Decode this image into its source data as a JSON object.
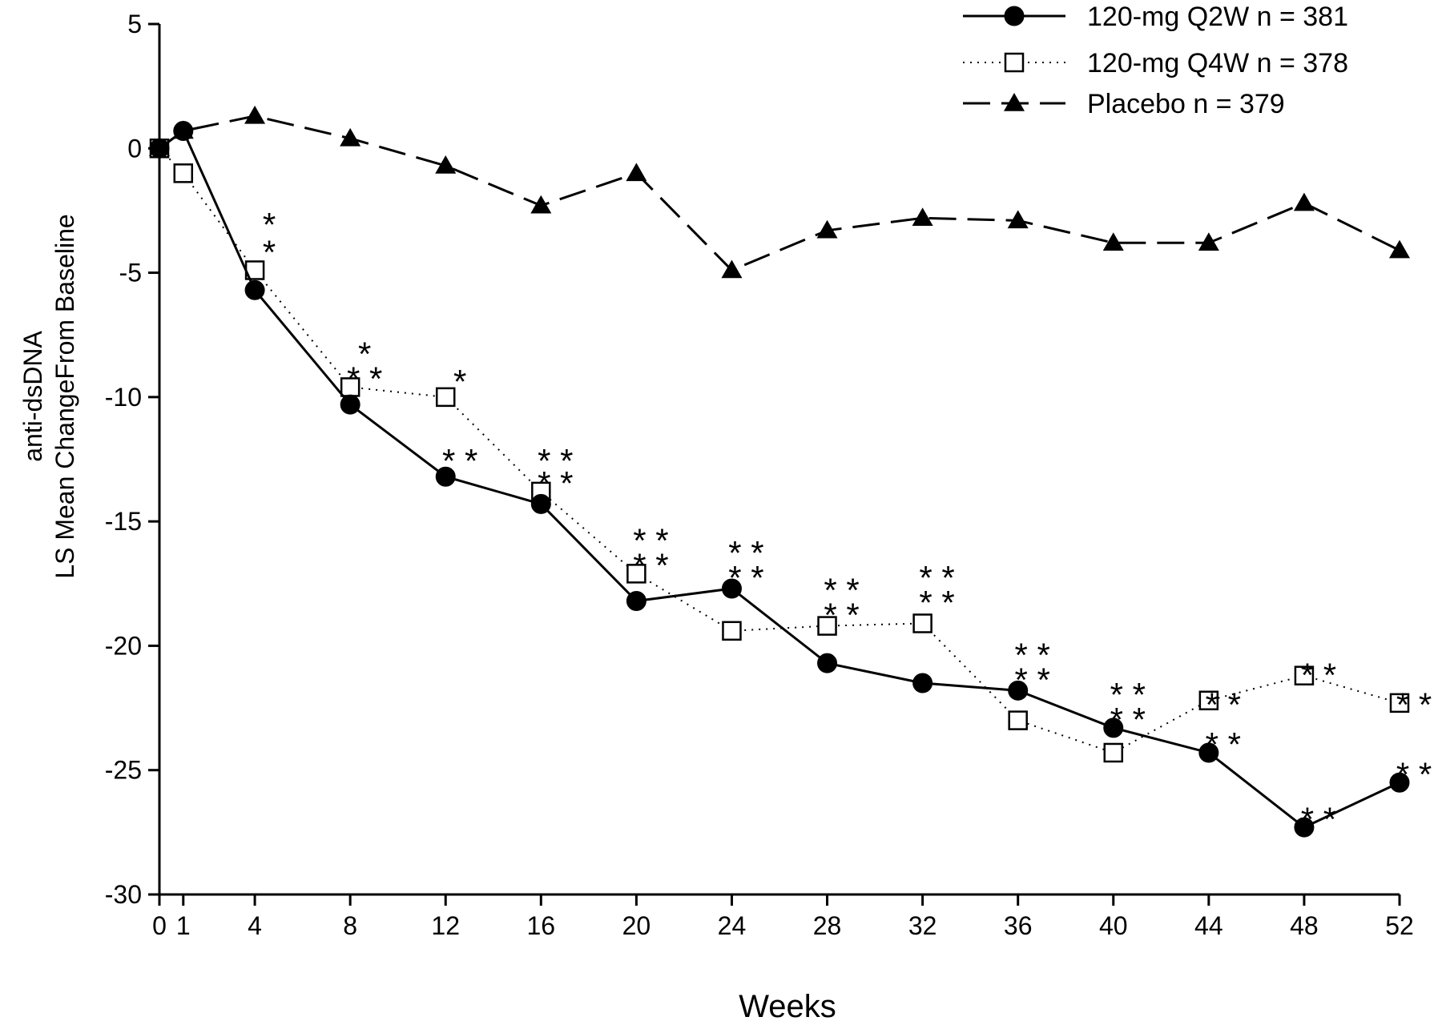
{
  "chart_data": {
    "type": "line",
    "xlabel": "Weeks",
    "ylabel_lines": [
      "anti-dsDNA",
      "LS Mean ChangeFrom Baseline"
    ],
    "xlim": [
      0,
      52
    ],
    "ylim": [
      -30,
      5
    ],
    "xticks": [
      0,
      1,
      4,
      8,
      12,
      16,
      20,
      24,
      28,
      32,
      36,
      40,
      44,
      48,
      52
    ],
    "yticks": [
      5,
      0,
      -5,
      -10,
      -15,
      -20,
      -25,
      -30
    ],
    "grid": false,
    "legend_position": "top-right",
    "series": [
      {
        "name": "120-mg Q2W n = 381",
        "marker": "filled-circle",
        "line_style": "solid",
        "x": [
          0,
          1,
          4,
          8,
          12,
          16,
          20,
          24,
          28,
          32,
          36,
          40,
          44,
          48,
          52
        ],
        "y": [
          0,
          0.7,
          -5.7,
          -10.3,
          -13.2,
          -14.3,
          -18.2,
          -17.7,
          -20.7,
          -21.5,
          -21.8,
          -23.3,
          -24.3,
          -27.3,
          -25.5
        ]
      },
      {
        "name": "120-mg Q4W n = 378",
        "marker": "open-square",
        "line_style": "dotted",
        "x": [
          0,
          1,
          4,
          8,
          12,
          16,
          20,
          24,
          28,
          32,
          36,
          40,
          44,
          48,
          52
        ],
        "y": [
          0,
          -1.0,
          -4.9,
          -9.6,
          -10.0,
          -13.8,
          -17.1,
          -19.4,
          -19.2,
          -19.1,
          -23.0,
          -24.3,
          -22.2,
          -21.2,
          -22.3
        ]
      },
      {
        "name": "Placebo n = 379",
        "marker": "filled-triangle",
        "line_style": "dashed",
        "x": [
          0,
          1,
          4,
          8,
          12,
          16,
          20,
          24,
          28,
          32,
          36,
          40,
          44,
          48,
          52
        ],
        "y": [
          0,
          0.7,
          1.3,
          0.4,
          -0.7,
          -2.3,
          -1.0,
          -4.9,
          -3.3,
          -2.8,
          -2.9,
          -3.8,
          -3.8,
          -2.2,
          -4.1
        ]
      }
    ],
    "annotations": [
      {
        "text": "*",
        "x": 4,
        "y": -2.7
      },
      {
        "text": "*",
        "x": 4,
        "y": -3.8
      },
      {
        "text": "*",
        "x": 8,
        "y": -7.9
      },
      {
        "text": "* *",
        "x": 8,
        "y": -8.9
      },
      {
        "text": "*",
        "x": 12,
        "y": -9.0
      },
      {
        "text": "* *",
        "x": 12,
        "y": -12.2
      },
      {
        "text": "* *",
        "x": 16,
        "y": -12.2
      },
      {
        "text": "* *",
        "x": 16,
        "y": -13.1
      },
      {
        "text": "* *",
        "x": 20,
        "y": -15.4
      },
      {
        "text": "* *",
        "x": 20,
        "y": -16.4
      },
      {
        "text": "* *",
        "x": 24,
        "y": -15.9
      },
      {
        "text": "* *",
        "x": 24,
        "y": -16.9
      },
      {
        "text": "* *",
        "x": 28,
        "y": -17.4
      },
      {
        "text": "* *",
        "x": 28,
        "y": -18.4
      },
      {
        "text": "* *",
        "x": 32,
        "y": -16.9
      },
      {
        "text": "* *",
        "x": 32,
        "y": -17.9
      },
      {
        "text": "* *",
        "x": 36,
        "y": -20.0
      },
      {
        "text": "* *",
        "x": 36,
        "y": -21.0
      },
      {
        "text": "* *",
        "x": 40,
        "y": -21.6
      },
      {
        "text": "* *",
        "x": 40,
        "y": -22.6
      },
      {
        "text": "* *",
        "x": 44,
        "y": -22.0
      },
      {
        "text": "* *",
        "x": 44,
        "y": -23.6
      },
      {
        "text": "* *",
        "x": 48,
        "y": -20.8
      },
      {
        "text": "* *",
        "x": 48,
        "y": -26.6
      },
      {
        "text": "* *",
        "x": 52,
        "y": -22.0
      },
      {
        "text": "* *",
        "x": 52,
        "y": -24.8
      }
    ]
  }
}
